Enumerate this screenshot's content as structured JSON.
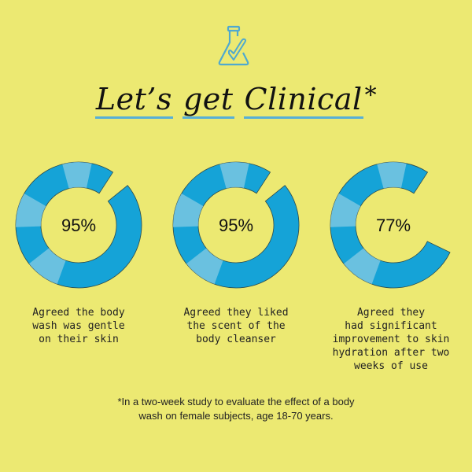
{
  "header": {
    "icon": "flask-check-icon"
  },
  "title": {
    "words": [
      "Let’s",
      "get",
      "Clinical"
    ],
    "asterisk": "*"
  },
  "colors": {
    "background": "#ece972",
    "ring": "#15a3d7",
    "ring_highlight": "#8fcde4",
    "underline": "#58afd6",
    "outline": "#2c4a4a"
  },
  "chart_data": {
    "type": "donut",
    "title": "Let’s get Clinical*",
    "items": [
      {
        "value": 95,
        "label": "95%",
        "caption": [
          "Agreed the body",
          "wash was gentle",
          "on their skin"
        ]
      },
      {
        "value": 95,
        "label": "95%",
        "caption": [
          "Agreed they liked",
          "the scent of the",
          "body cleanser"
        ]
      },
      {
        "value": 77,
        "label": "77%",
        "caption": [
          "Agreed they",
          "had significant",
          "improvement to skin",
          "hydration after two",
          "weeks of use"
        ]
      }
    ]
  },
  "footnote": [
    "*In a two-week study to evaluate the effect of a body",
    "wash on female subjects, age 18-70 years."
  ]
}
